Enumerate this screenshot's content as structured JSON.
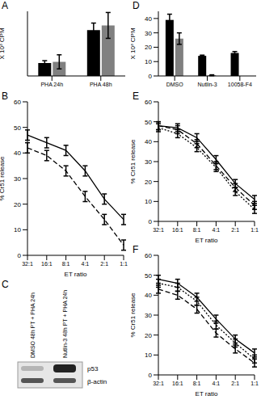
{
  "chart_data": [
    {
      "panel": "A",
      "type": "bar",
      "y_label": "X 10³ CPM",
      "categories": [
        "PHA 24h",
        "PHA 48h"
      ],
      "ylim": [
        0,
        55
      ],
      "tick_labels": "x",
      "series": [
        {
          "color": "#000000",
          "values": [
            11,
            39
          ],
          "errors": [
            2,
            6
          ]
        },
        {
          "color": "#808080",
          "values": [
            12,
            43
          ],
          "errors": [
            6,
            11
          ]
        }
      ]
    },
    {
      "panel": "B",
      "type": "line",
      "x_label": "ET ratio",
      "y_label": "% Cr51 release",
      "categories": [
        "32:1",
        "16:1",
        "8:1",
        "4:1",
        "2:1",
        "1:1"
      ],
      "ylim": [
        0,
        60
      ],
      "yticks": [
        0,
        10,
        20,
        30,
        40,
        50,
        60
      ],
      "series": [
        {
          "color": "#000000",
          "line_style": "solid",
          "values": [
            47,
            44,
            41,
            33,
            22,
            14
          ],
          "errors": [
            2,
            2,
            2,
            2,
            2,
            2
          ]
        },
        {
          "color": "#000000",
          "line_style": "dashed",
          "values": [
            42,
            39,
            33,
            23,
            14,
            4
          ],
          "errors": [
            2,
            2,
            2,
            2,
            2,
            2
          ]
        }
      ]
    },
    {
      "panel": "C",
      "type": "western_blot",
      "categories": [
        "DMSO 48h PT + PHA 24h",
        "Nutlin-3 48h PT + PHA 24h"
      ],
      "bands": [
        "p53",
        "β-actin"
      ]
    },
    {
      "panel": "D",
      "type": "bar",
      "y_label": "X 10³ CPM",
      "categories": [
        "DMSO",
        "Nutlin-3",
        "10058-F4"
      ],
      "ylim": [
        0,
        45
      ],
      "yticks": [
        0,
        10,
        20,
        30,
        40
      ],
      "series": [
        {
          "color": "#000000",
          "values": [
            39,
            14,
            16
          ],
          "errors": [
            4,
            0.5,
            1
          ]
        },
        {
          "color": "#808080",
          "values": [
            26,
            0.5,
            null
          ],
          "errors": [
            4,
            0.3,
            null
          ]
        }
      ]
    },
    {
      "panel": "E",
      "type": "line",
      "x_label": "ET ratio",
      "y_label": "% Cr51 release",
      "categories": [
        "32:1",
        "16:1",
        "8:1",
        "4:1",
        "2:1",
        "1:1"
      ],
      "ylim": [
        0,
        60
      ],
      "yticks": [
        0,
        10,
        20,
        30,
        40,
        50,
        60
      ],
      "series": [
        {
          "color": "#000000",
          "line_style": "solid",
          "values": [
            48,
            47,
            42,
            31,
            19,
            11
          ],
          "errors": [
            2,
            2,
            2,
            2,
            2,
            2
          ]
        },
        {
          "color": "#000000",
          "line_style": "dashed",
          "values": [
            48,
            46,
            39,
            28,
            17,
            8
          ],
          "errors": [
            2,
            2,
            2,
            2,
            2,
            2
          ]
        },
        {
          "color": "#000000",
          "line_style": "dotted",
          "values": [
            47,
            44,
            37,
            27,
            15,
            6
          ],
          "errors": [
            2,
            2,
            2,
            2,
            2,
            2
          ]
        }
      ]
    },
    {
      "panel": "F",
      "type": "line",
      "x_label": "ET ratio",
      "y_label": "% Cr51 release",
      "categories": [
        "32:1",
        "16:1",
        "8:1",
        "4:1",
        "2:1",
        "1:1"
      ],
      "ylim": [
        0,
        60
      ],
      "yticks": [
        0,
        10,
        20,
        30,
        40,
        50,
        60
      ],
      "series": [
        {
          "color": "#000000",
          "line_style": "solid",
          "values": [
            48,
            46,
            39,
            28,
            18,
            11
          ],
          "errors": [
            2,
            2,
            2,
            2,
            2,
            2
          ]
        },
        {
          "color": "#000000",
          "line_style": "dotted",
          "values": [
            46,
            44,
            37,
            25,
            16,
            8
          ],
          "errors": [
            2,
            2,
            2,
            2,
            2,
            2
          ]
        },
        {
          "color": "#000000",
          "line_style": "dashed",
          "values": [
            43,
            40,
            33,
            21,
            13,
            6
          ],
          "errors": [
            2,
            2,
            2,
            2,
            2,
            2
          ]
        }
      ]
    }
  ]
}
